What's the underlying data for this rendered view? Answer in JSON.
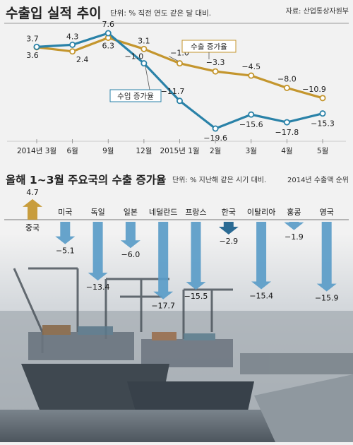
{
  "colors": {
    "export": "#c4962e",
    "import": "#2a82a8",
    "arrow": "#5a9cc8",
    "arrow_korea": "#1a5f8c",
    "arrow_china": "#c4962e",
    "photo_sky": "#d9dde2",
    "photo_dark": "#55606a"
  },
  "source_label": "자료: 산업통상자원부",
  "chart_data": [
    {
      "type": "line",
      "title": "수출입 실적 추이",
      "unit_note": "단위: %  직전 연도 같은 달 대비.",
      "categories": [
        "2014년 3월",
        "6월",
        "9월",
        "12월",
        "2015년 1월",
        "2월",
        "3월",
        "4월",
        "5월"
      ],
      "ylim": [
        -22,
        9
      ],
      "series": [
        {
          "name": "수출 증가율",
          "values": [
            3.6,
            2.4,
            6.3,
            3.1,
            -1.0,
            -3.3,
            -4.5,
            -8.0,
            -10.9
          ],
          "labels": [
            "3.6",
            "2.4",
            "6.3",
            "3.1",
            "−1.0",
            "−3.3",
            "−4.5",
            "−8.0",
            "−10.9"
          ]
        },
        {
          "name": "수입 증가율",
          "values": [
            3.7,
            4.3,
            7.6,
            -1.0,
            -11.7,
            -19.6,
            -15.6,
            -17.8,
            -15.3
          ],
          "labels": [
            "3.7",
            "4.3",
            "7.6",
            "−1.0",
            "−11.7",
            "−19.6",
            "−15.6",
            "−17.8",
            "−15.3"
          ]
        }
      ]
    },
    {
      "type": "bar",
      "title": "올해 1~3월 주요국의 수출 증가율",
      "unit_note": "단위: %  지난해 같은 시기 대비.",
      "order_note": "2014년 수출액 순위",
      "categories": [
        "중국",
        "미국",
        "독일",
        "일본",
        "네덜란드",
        "프랑스",
        "한국",
        "이탈리아",
        "홍콩",
        "영국"
      ],
      "values": [
        4.7,
        -5.1,
        -13.4,
        -6.0,
        -17.7,
        -15.5,
        -2.9,
        -15.4,
        -1.9,
        -15.9
      ],
      "labels": [
        "4.7",
        "−5.1",
        "−13.4",
        "−6.0",
        "−17.7",
        "−15.5",
        "−2.9",
        "−15.4",
        "−1.9",
        "−15.9"
      ]
    }
  ]
}
